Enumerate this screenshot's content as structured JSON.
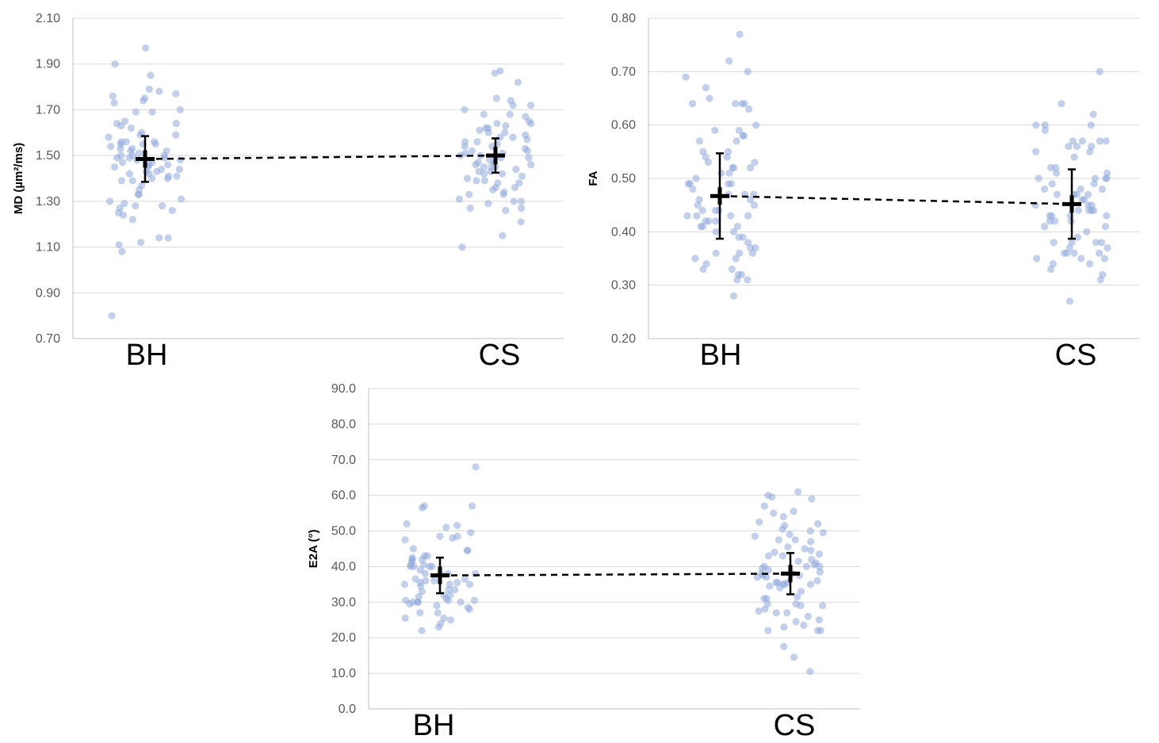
{
  "figure": {
    "colors": {
      "dot": "#8FAADC",
      "grid": "#D9D9D9",
      "mean": "#000000",
      "axis": "#BFBFBF"
    }
  },
  "chart_data": [
    {
      "id": "md",
      "type": "scatter",
      "ylabel": "MD (µm²/ms)",
      "ylim": [
        0.7,
        2.1
      ],
      "yticks": [
        "2.10",
        "1.90",
        "1.70",
        "1.50",
        "1.30",
        "1.10",
        "0.90",
        "0.70"
      ],
      "categories": [
        "BH",
        "CS"
      ],
      "means": [
        1.485,
        1.5
      ],
      "sd": [
        0.1,
        0.075
      ],
      "series": [
        {
          "name": "BH",
          "values": [
            1.77,
            1.76,
            1.79,
            1.69,
            1.6,
            1.56,
            1.55,
            1.5,
            1.45,
            1.44,
            1.41,
            1.39,
            1.31,
            1.14,
            1.12,
            1.64,
            1.59,
            1.55,
            1.53,
            1.5,
            1.46,
            1.43,
            1.35,
            1.25,
            1.22,
            1.75,
            1.58,
            1.53,
            1.51,
            1.48,
            1.44,
            1.42,
            1.33,
            1.24,
            1.85,
            1.7,
            1.59,
            1.55,
            1.49,
            1.47,
            1.41,
            1.37,
            1.29,
            1.78,
            1.52,
            1.49,
            1.43,
            1.11,
            1.64,
            1.52,
            1.49,
            1.46,
            1.42,
            1.33,
            1.26,
            1.74,
            1.65,
            1.62,
            1.56,
            1.5,
            1.45,
            1.4,
            1.3,
            1.9,
            1.73,
            1.69,
            1.56,
            1.48,
            1.39,
            1.28,
            1.97,
            1.63,
            1.54,
            1.47,
            1.4,
            1.27,
            1.14,
            1.08,
            0.8,
            1.28
          ]
        },
        {
          "name": "CS",
          "values": [
            1.72,
            1.58,
            1.54,
            1.43,
            1.38,
            1.3,
            1.36,
            1.55,
            1.64,
            1.5,
            1.42,
            1.33,
            1.29,
            1.21,
            1.68,
            1.48,
            1.39,
            1.64,
            1.74,
            1.41,
            1.3,
            1.1,
            1.6,
            1.57,
            1.46,
            1.36,
            1.27,
            1.67,
            1.52,
            1.42,
            1.87,
            1.62,
            1.6,
            1.49,
            1.4,
            1.26,
            1.65,
            1.56,
            1.47,
            1.44,
            1.27,
            1.63,
            1.54,
            1.45,
            1.82,
            1.58,
            1.51,
            1.43,
            1.72,
            1.53,
            1.47,
            1.39,
            1.86,
            1.7,
            1.59,
            1.5,
            1.45,
            1.34,
            1.15,
            1.75,
            1.61,
            1.52,
            1.49,
            1.33,
            1.68,
            1.56,
            1.46,
            1.38,
            1.62,
            1.51,
            1.45,
            1.35,
            1.31
          ]
        }
      ]
    },
    {
      "id": "fa",
      "type": "scatter",
      "ylabel": "FA",
      "ylim": [
        0.2,
        0.8
      ],
      "yticks": [
        "0.80",
        "0.70",
        "0.60",
        "0.50",
        "0.40",
        "0.30",
        "0.20"
      ],
      "categories": [
        "BH",
        "CS"
      ],
      "means": [
        0.467,
        0.452
      ],
      "sd": [
        0.08,
        0.065
      ],
      "series": [
        {
          "name": "BH",
          "values": [
            0.77,
            0.6,
            0.58,
            0.55,
            0.41,
            0.39,
            0.36,
            0.35,
            0.69,
            0.53,
            0.47,
            0.43,
            0.39,
            0.33,
            0.64,
            0.59,
            0.57,
            0.45,
            0.42,
            0.31,
            0.28,
            0.67,
            0.65,
            0.54,
            0.52,
            0.45,
            0.4,
            0.64,
            0.5,
            0.49,
            0.43,
            0.33,
            0.32,
            0.54,
            0.51,
            0.47,
            0.44,
            0.37,
            0.59,
            0.52,
            0.49,
            0.44,
            0.41,
            0.63,
            0.53,
            0.47,
            0.43,
            0.42,
            0.36,
            0.32,
            0.52,
            0.49,
            0.46,
            0.42,
            0.35,
            0.31,
            0.58,
            0.55,
            0.48,
            0.44,
            0.38,
            0.34,
            0.72,
            0.64,
            0.57,
            0.51,
            0.43,
            0.7,
            0.64,
            0.37,
            0.36,
            0.49,
            0.46,
            0.4,
            0.41
          ]
        },
        {
          "name": "CS",
          "values": [
            0.6,
            0.52,
            0.45,
            0.38,
            0.37,
            0.36,
            0.57,
            0.51,
            0.44,
            0.38,
            0.64,
            0.5,
            0.48,
            0.44,
            0.36,
            0.27,
            0.62,
            0.56,
            0.47,
            0.42,
            0.35,
            0.55,
            0.5,
            0.43,
            0.41,
            0.33,
            0.56,
            0.51,
            0.46,
            0.37,
            0.7,
            0.5,
            0.47,
            0.4,
            0.38,
            0.36,
            0.57,
            0.54,
            0.47,
            0.43,
            0.35,
            0.31,
            0.57,
            0.49,
            0.44,
            0.32,
            0.49,
            0.45,
            0.41,
            0.6,
            0.52,
            0.47,
            0.42,
            0.34,
            0.35,
            0.59,
            0.57,
            0.48,
            0.43,
            0.38,
            0.39,
            0.55,
            0.5,
            0.46,
            0.43,
            0.6,
            0.56,
            0.48,
            0.45,
            0.44,
            0.36,
            0.34,
            0.42
          ]
        }
      ]
    },
    {
      "id": "e2a",
      "type": "scatter",
      "ylabel": "E2A (°)",
      "ylim": [
        0,
        90
      ],
      "yticks": [
        "90.0",
        "80.0",
        "70.0",
        "60.0",
        "50.0",
        "40.0",
        "30.0",
        "20.0",
        "10.0",
        "0.0"
      ],
      "categories": [
        "BH",
        "CS"
      ],
      "means": [
        37.5,
        38.0
      ],
      "sd": [
        5.0,
        5.8
      ],
      "series": [
        {
          "name": "BH",
          "values": [
            41.5,
            40.5,
            30.5,
            30.0,
            52.0,
            42.5,
            36.0,
            33.0,
            28.5,
            30.0,
            57.0,
            48.0,
            35.5,
            31.5,
            25.0,
            22.0,
            45.0,
            40.0,
            36.5,
            31.0,
            24.0,
            42.0,
            38.0,
            35.0,
            28.0,
            48.5,
            44.5,
            36.5,
            30.0,
            25.5,
            49.5,
            47.5,
            42.0,
            38.0,
            33.5,
            30.0,
            48.5,
            40.0,
            35.0,
            29.0,
            44.5,
            40.5,
            36.0,
            32.0,
            23.0,
            56.5,
            51.0,
            40.0,
            34.5,
            29.5,
            39.0,
            35.5,
            30.5,
            27.0,
            57.0,
            51.5,
            43.0,
            38.0,
            33.5,
            27.0,
            68.0,
            43.0,
            40.0,
            35.0,
            32.0,
            30.5,
            25.5,
            38.0
          ]
        },
        {
          "name": "CS",
          "values": [
            59.0,
            44.5,
            38.0,
            35.5,
            29.5,
            22.0,
            51.5,
            47.5,
            40.0,
            34.0,
            24.5,
            52.5,
            43.0,
            37.5,
            31.0,
            22.0,
            47.0,
            39.0,
            35.0,
            29.0,
            17.5,
            60.0,
            55.0,
            45.0,
            40.0,
            33.0,
            26.0,
            55.5,
            44.0,
            38.5,
            35.5,
            27.0,
            61.0,
            50.0,
            42.0,
            37.0,
            29.5,
            23.5,
            54.0,
            47.5,
            39.5,
            35.0,
            25.0,
            52.0,
            43.5,
            37.5,
            31.5,
            22.0,
            14.5,
            49.0,
            40.5,
            36.0,
            28.0,
            45.5,
            41.0,
            35.0,
            27.0,
            10.5,
            57.0,
            48.5,
            40.0,
            35.5,
            29.0,
            59.5,
            50.5,
            43.0,
            38.0,
            34.5,
            27.5,
            23.0,
            49.5,
            41.5,
            37.0,
            31.0
          ]
        }
      ]
    }
  ]
}
